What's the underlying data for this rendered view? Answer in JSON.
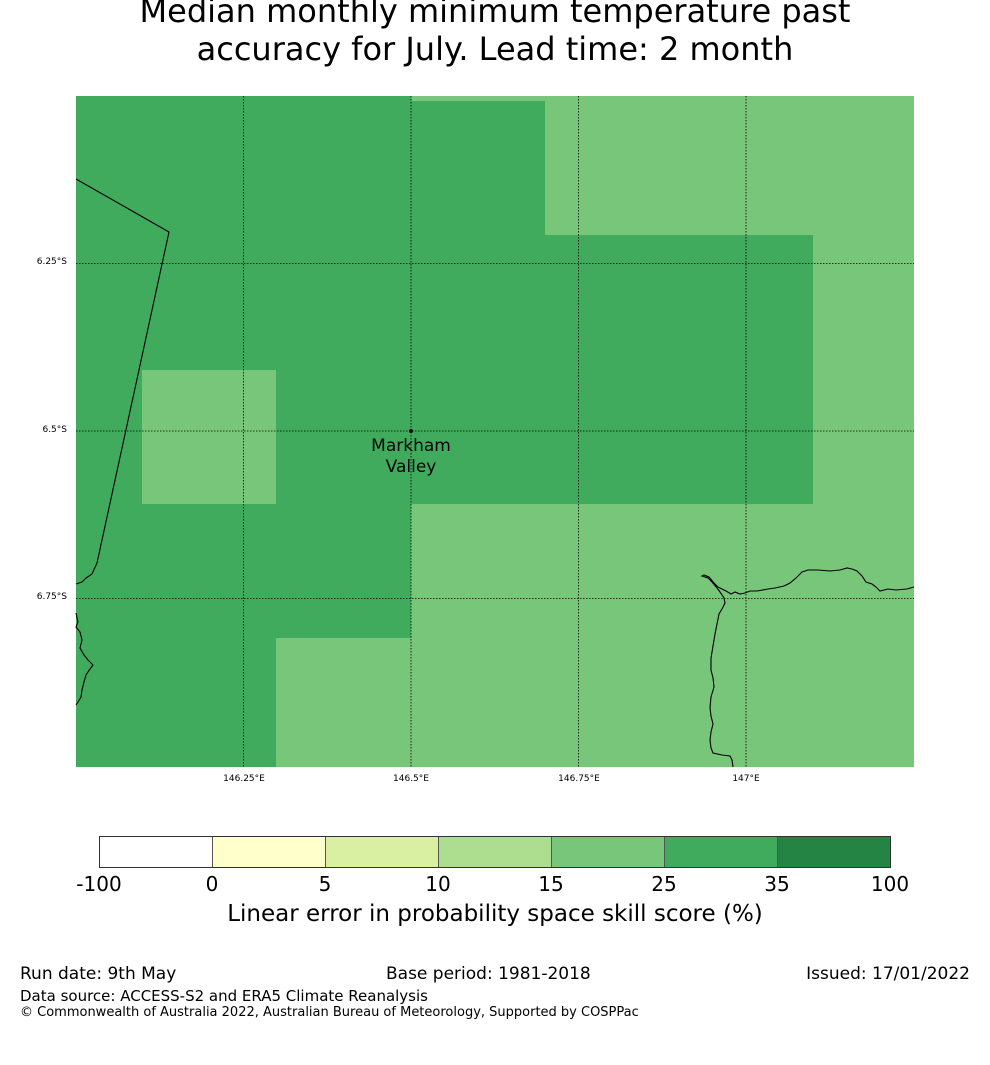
{
  "title": {
    "line1": "Median monthly minimum temperature past",
    "line2": "accuracy for July. Lead time: 2 month"
  },
  "map": {
    "lat_ticks": [
      "6.25°S",
      "6.5°S",
      "6.75°S"
    ],
    "lon_ticks": [
      "146.25°E",
      "146.5°E",
      "146.75°E",
      "147°E"
    ],
    "place_name_line1": "Markham",
    "place_name_line2": "Valley",
    "colors": {
      "band_25_35": "#78c679",
      "band_35_100": "#41ab5d",
      "coastline": "#000000",
      "gridline": "#000000"
    }
  },
  "colorbar": {
    "ticks": [
      "-100",
      "0",
      "5",
      "10",
      "15",
      "25",
      "35",
      "100"
    ],
    "colors": [
      "#ffffff",
      "#ffffcc",
      "#d9f0a3",
      "#addd8e",
      "#78c679",
      "#41ab5d",
      "#238443"
    ],
    "label": "Linear error in probability space skill score (%)"
  },
  "footer": {
    "run_date": "Run date: 9th May",
    "base_period": "Base period: 1981-2018",
    "issued": "Issued: 17/01/2022",
    "data_source": "Data source: ACCESS-S2 and ERA5 Climate Reanalysis",
    "copyright": "© Commonwealth of Australia 2022, Australian Bureau of Meteorology, Supported by COSPPac"
  }
}
